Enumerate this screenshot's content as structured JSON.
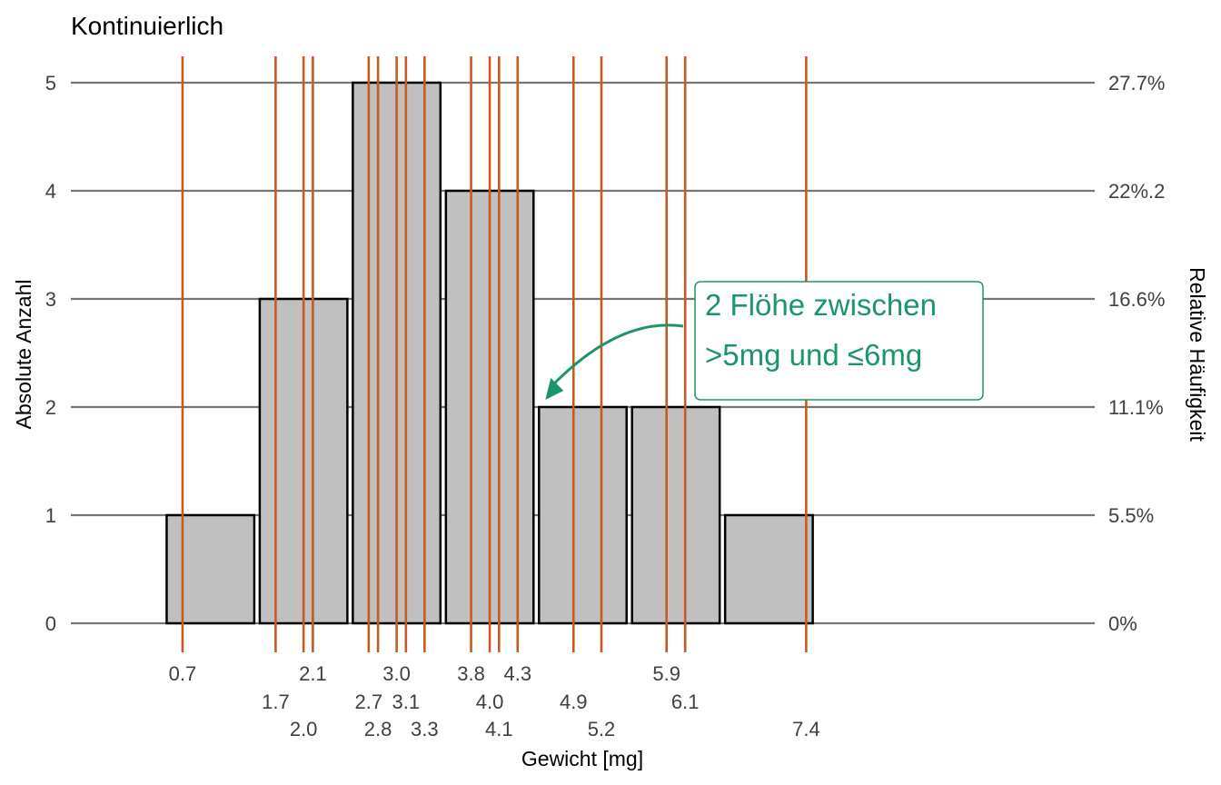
{
  "chart_data": {
    "type": "bar",
    "title": "Kontinuierlich",
    "xlabel": "Gewicht [mg]",
    "ylabel": "Absolute Anzahl",
    "y2label": "Relative Häufigkeit",
    "xlim": [
      0,
      11
    ],
    "ylim": [
      0,
      5
    ],
    "bins": [
      {
        "start": 1,
        "end": 2,
        "count": 1
      },
      {
        "start": 2,
        "end": 3,
        "count": 3
      },
      {
        "start": 3,
        "end": 4,
        "count": 5
      },
      {
        "start": 4,
        "end": 5,
        "count": 4
      },
      {
        "start": 5,
        "end": 6,
        "count": 2
      },
      {
        "start": 6,
        "end": 7,
        "count": 2
      },
      {
        "start": 7,
        "end": 8,
        "count": 1
      }
    ],
    "y_ticks": [
      "0",
      "1",
      "2",
      "3",
      "4",
      "5"
    ],
    "y2_ticks": [
      "0%",
      "5.5%",
      "11.1%",
      "16.6%",
      "22%.2",
      "27.7%"
    ],
    "observations": [
      {
        "value": 1.2,
        "label": "0.7",
        "row": 0
      },
      {
        "value": 2.2,
        "label": "1.7",
        "row": 1
      },
      {
        "value": 2.5,
        "label": "2.0",
        "row": 2
      },
      {
        "value": 2.6,
        "label": "2.1",
        "row": 0
      },
      {
        "value": 3.2,
        "label": "2.7",
        "row": 1
      },
      {
        "value": 3.3,
        "label": "2.8",
        "row": 2
      },
      {
        "value": 3.5,
        "label": "3.0",
        "row": 0
      },
      {
        "value": 3.6,
        "label": "3.1",
        "row": 1
      },
      {
        "value": 3.8,
        "label": "3.3",
        "row": 2
      },
      {
        "value": 4.3,
        "label": "3.8",
        "row": 0
      },
      {
        "value": 4.5,
        "label": "4.0",
        "row": 1
      },
      {
        "value": 4.6,
        "label": "4.1",
        "row": 2
      },
      {
        "value": 4.8,
        "label": "4.3",
        "row": 0
      },
      {
        "value": 5.4,
        "label": "4.9",
        "row": 1
      },
      {
        "value": 5.7,
        "label": "5.2",
        "row": 2
      },
      {
        "value": 6.4,
        "label": "5.9",
        "row": 0
      },
      {
        "value": 6.6,
        "label": "6.1",
        "row": 1
      },
      {
        "value": 7.9,
        "label": "7.4",
        "row": 2
      }
    ],
    "annotation": {
      "lines": [
        "2 Flöhe zwischen",
        ">5mg und ≤6mg"
      ],
      "target_bin": 4
    },
    "colors": {
      "bar_fill": "#c0c0c0",
      "bar_stroke": "#000000",
      "observation_line": "#c85a1e",
      "grid": "#757575",
      "annotation": "#1b9668"
    }
  }
}
